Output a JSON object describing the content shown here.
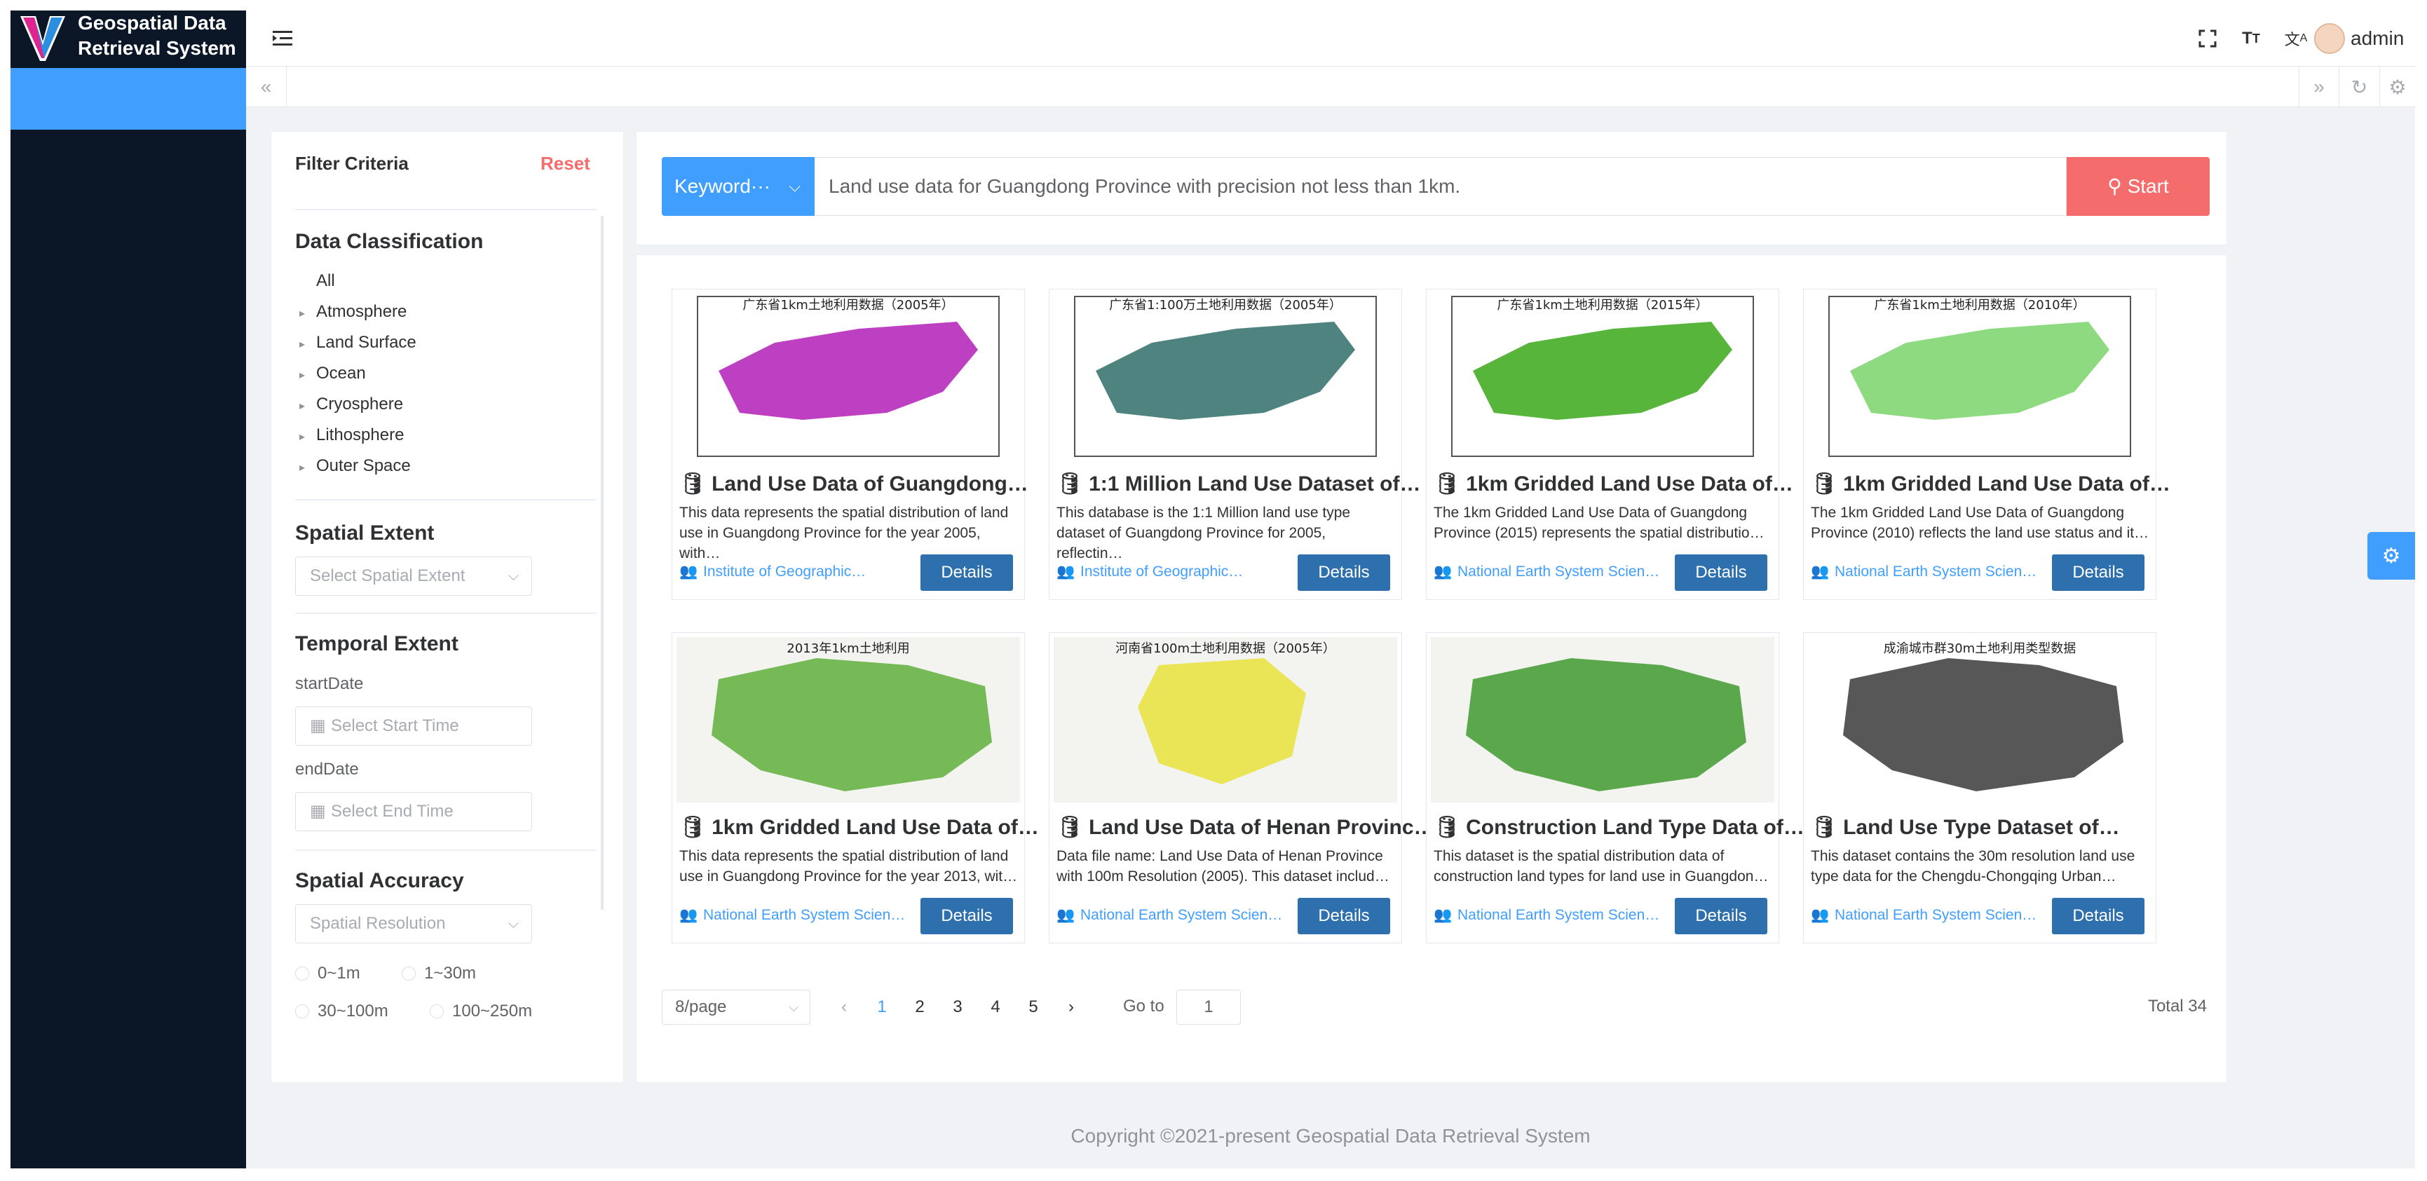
{
  "app": {
    "title": "Geospatial Data Retrieval System"
  },
  "header": {
    "user": "admin",
    "icons": [
      "fullscreen-icon",
      "font-size-icon",
      "translate-icon"
    ]
  },
  "tabs": {
    "left": "«",
    "right": "»",
    "refresh": "↻",
    "settings": "⚙"
  },
  "filter": {
    "title": "Filter Criteria",
    "reset": "Reset",
    "classification": {
      "heading": "Data Classification",
      "items": [
        "All",
        "Atmosphere",
        "Land Surface",
        "Ocean",
        "Cryosphere",
        "Lithosphere",
        "Outer Space"
      ]
    },
    "spatial_extent": {
      "heading": "Spatial Extent",
      "placeholder": "Select Spatial Extent"
    },
    "temporal_extent": {
      "heading": "Temporal Extent",
      "start_label": "startDate",
      "start_placeholder": "Select Start Time",
      "end_label": "endDate",
      "end_placeholder": "Select End Time"
    },
    "spatial_accuracy": {
      "heading": "Spatial Accuracy",
      "placeholder": "Spatial Resolution",
      "options": [
        "0~1m",
        "1~30m",
        "30~100m",
        "100~250m"
      ]
    }
  },
  "search": {
    "mode": "Keyword···",
    "query": "Land use data for Guangdong Province with precision not less than 1km.",
    "start": "Start"
  },
  "results": [
    {
      "title": "Land Use Data of Guangdong…",
      "desc": "This data represents the spatial distribution of land use in Guangdong Province for the year 2005, with…",
      "org": "Institute of Geographic…",
      "details": "Details",
      "thumb_caption": "广东省1km土地利用数据（2005年）",
      "accent": "#b21fb8"
    },
    {
      "title": "1:1 Million Land Use Dataset of…",
      "desc": "This database is the 1:1 Million land use type dataset of Guangdong Province for 2005, reflectin…",
      "org": "Institute of Geographic…",
      "details": "Details",
      "thumb_caption": "广东省1:100万土地利用数据（2005年）",
      "accent": "#2f6d6a"
    },
    {
      "title": "1km Gridded Land Use Data of…",
      "desc": "The 1km Gridded Land Use Data of Guangdong Province (2015) represents the spatial distributio…",
      "org": "National Earth System Scien…",
      "details": "Details",
      "thumb_caption": "广东省1km土地利用数据（2015年）",
      "accent": "#3aa81a"
    },
    {
      "title": "1km Gridded Land Use Data of…",
      "desc": "The 1km Gridded Land Use Data of Guangdong Province (2010) reflects the land use status and it…",
      "org": "National Earth System Scien…",
      "details": "Details",
      "thumb_caption": "广东省1km土地利用数据（2010年）",
      "accent": "#7ad36b"
    },
    {
      "title": "1km Gridded Land Use Data of…",
      "desc": "This data represents the spatial distribution of land use in Guangdong Province for the year 2013, wit…",
      "org": "National Earth System Scien…",
      "details": "Details",
      "thumb_caption": "2013年1km土地利用",
      "accent": "#5fae3c"
    },
    {
      "title": "Land Use Data of Henan Provinc…",
      "desc": "Data file name: Land Use Data of Henan Province with 100m Resolution (2005). This dataset includ…",
      "org": "National Earth System Scien…",
      "details": "Details",
      "thumb_caption": "河南省100m土地利用数据（2005年）",
      "accent": "#e6e23c"
    },
    {
      "title": "Construction Land Type Data of…",
      "desc": "This dataset is the spatial distribution data of construction land types for land use in Guangdon…",
      "org": "National Earth System Scien…",
      "details": "Details",
      "thumb_caption": "",
      "accent": "#3f9a2f"
    },
    {
      "title": "Land Use Type Dataset of…",
      "desc": "This dataset contains the 30m resolution land use type data for the Chengdu-Chongqing Urban…",
      "org": "National Earth System Scien…",
      "details": "Details",
      "thumb_caption": "成渝城市群30m土地利用类型数据",
      "accent": "#3a3a3a"
    }
  ],
  "pagination": {
    "page_size": "8/page",
    "prev": "‹",
    "next": "›",
    "pages": [
      "1",
      "2",
      "3",
      "4",
      "5"
    ],
    "current": "1",
    "goto_label": "Go to",
    "goto_value": "1",
    "total": "Total 34"
  },
  "footer": {
    "copyright": "Copyright ©2021-present Geospatial Data Retrieval System"
  },
  "colors": {
    "primary": "#409eff",
    "danger": "#f56c6c",
    "sidebar": "#0b1727",
    "details": "#2e6fad"
  }
}
